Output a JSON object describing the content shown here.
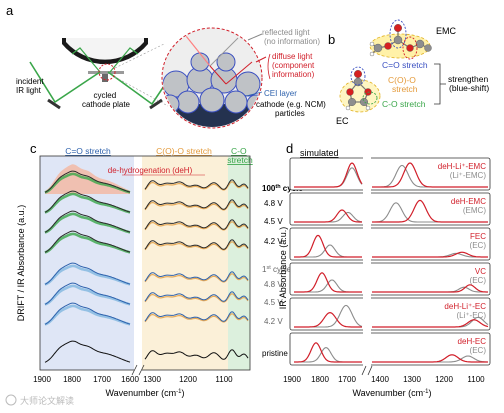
{
  "panel_a": {
    "letter": "a",
    "incident_label": [
      "incident",
      "IR light"
    ],
    "cycled_label": [
      "cycled",
      "cathode plate"
    ],
    "reflected_label": [
      "reflected light",
      "(no information)"
    ],
    "diffuse_label": [
      "diffuse light",
      "(component",
      "information)"
    ],
    "cei_label": "CEI layer",
    "cathode_label": [
      "cathode (e.g. NCM)",
      "particles"
    ]
  },
  "panel_b": {
    "letter": "b",
    "emc_label": "EMC",
    "ec_label": "EC",
    "co_stretch": "C=O stretch",
    "coo_stretch": [
      "C(O)-O",
      "stretch"
    ],
    "c_o_stretch": "C-O stretch",
    "strengthen_label": [
      "strengthen",
      "(blue-shift)"
    ]
  },
  "panel_c": {
    "letter": "c",
    "ylabel": "DRIFT / IR Absorbance (a.u.)",
    "xlabel": "Wavenumber (cm",
    "xlabel_sup": "-1",
    "xlabel_end": ")",
    "band_co": "C=O stretch",
    "band_coo": "C(O)-O stretch",
    "band_c_o": [
      "C-O",
      "stretch"
    ],
    "dehydro": "de-hydrogenation (deH)",
    "ticks_left": [
      "1900",
      "1800",
      "1700",
      "1600"
    ],
    "ticks_right": [
      "1300",
      "1200",
      "1100"
    ],
    "hundredth_pre": "100",
    "hundredth_sup": "th",
    "hundredth_post": " cycle",
    "first_pre": "1",
    "first_sup": "st",
    "first_post": " cycle",
    "voltages_100": [
      "4.8 V",
      "4.5 V",
      "4.2 V"
    ],
    "voltages_1": [
      "4.8 V",
      "4.5 V",
      "4.2 V"
    ],
    "pristine": "pristine"
  },
  "panel_d": {
    "letter": "d",
    "simulated": "simulated",
    "ylabel": "IR Absorbance (a.u.)",
    "xlabel": "Wavenumber (cm",
    "xlabel_sup": "-1",
    "xlabel_end": ")",
    "ticks_left": [
      "1900",
      "1800",
      "1700"
    ],
    "ticks_right": [
      "1400",
      "1300",
      "1200",
      "1100"
    ],
    "boxes": [
      {
        "red": "deH-Li⁺-EMC",
        "gray": "(Li⁺-EMC)"
      },
      {
        "red": "deH-EMC",
        "gray": "(EMC)"
      },
      {
        "red": "FEC",
        "gray": "(EC)"
      },
      {
        "red": "VC",
        "gray": "(EC)"
      },
      {
        "red": "deH-Li⁺-EC",
        "gray": "(Li⁺-EC)"
      },
      {
        "red": "deH-EC",
        "gray": "(EC)"
      }
    ]
  },
  "watermark": "大师论文解读",
  "colors": {
    "red": "#d11f2a",
    "gray": "#8c8c8c",
    "green": "#3aa64a",
    "blue": "#2e62ad",
    "orange": "#e49a3a",
    "band_blue": "#dfe6f6",
    "band_orange": "#fbf0d8",
    "band_green": "#dcf0dd"
  }
}
